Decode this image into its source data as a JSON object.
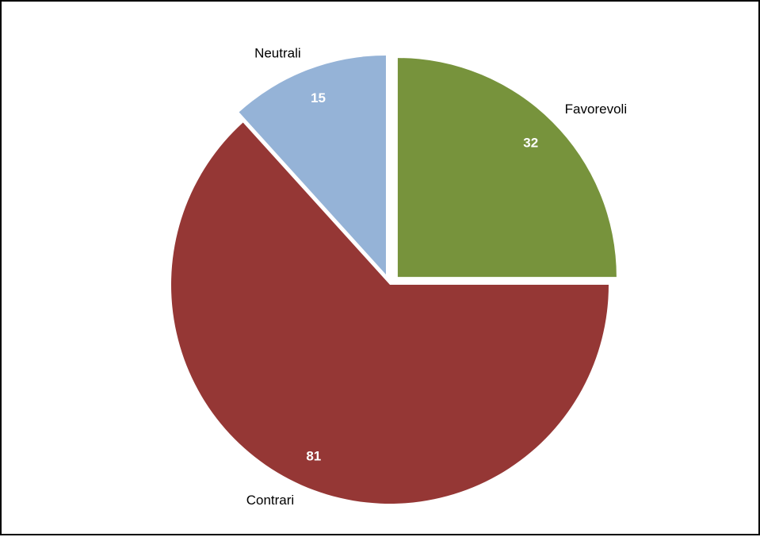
{
  "chart_data": {
    "type": "pie",
    "title": "",
    "slices": [
      {
        "label": "Favorevoli",
        "value": 32,
        "color": "#77933C",
        "exploded": true
      },
      {
        "label": "Contrari",
        "value": 81,
        "color": "#953735",
        "exploded": false
      },
      {
        "label": "Neutrali",
        "value": 15,
        "color": "#95B3D7",
        "exploded": true
      }
    ],
    "start_angle": "12 o'clock",
    "direction": "clockwise",
    "legend": "none",
    "data_labels": "inside"
  }
}
